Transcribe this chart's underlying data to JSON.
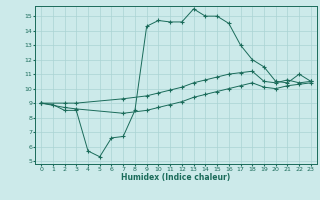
{
  "xlabel": "Humidex (Indice chaleur)",
  "bg_color": "#cceaea",
  "grid_color": "#aad4d4",
  "line_color": "#1a6b5a",
  "spine_color": "#1a6b5a",
  "xlim": [
    -0.5,
    23.5
  ],
  "ylim": [
    4.8,
    15.7
  ],
  "xticks": [
    0,
    1,
    2,
    3,
    4,
    5,
    6,
    7,
    8,
    9,
    10,
    11,
    12,
    13,
    14,
    15,
    16,
    17,
    18,
    19,
    20,
    21,
    22,
    23
  ],
  "yticks": [
    5,
    6,
    7,
    8,
    9,
    10,
    11,
    12,
    13,
    14,
    15
  ],
  "curve1_x": [
    0,
    1,
    2,
    3,
    4,
    5,
    6,
    7,
    8,
    9,
    10,
    11,
    12,
    13,
    14,
    15,
    16,
    17,
    18,
    19,
    20,
    21,
    22,
    23
  ],
  "curve1_y": [
    9.0,
    8.9,
    8.5,
    8.5,
    5.7,
    5.3,
    6.6,
    6.7,
    8.5,
    14.3,
    14.7,
    14.6,
    14.6,
    15.5,
    15.0,
    15.0,
    14.5,
    13.0,
    12.0,
    11.5,
    10.5,
    10.4,
    11.0,
    10.5
  ],
  "curve2_x": [
    0,
    2,
    3,
    7,
    9,
    10,
    11,
    12,
    13,
    14,
    15,
    16,
    17,
    18,
    19,
    20,
    21,
    22,
    23
  ],
  "curve2_y": [
    9.0,
    9.0,
    9.0,
    9.3,
    9.5,
    9.7,
    9.9,
    10.1,
    10.4,
    10.6,
    10.8,
    11.0,
    11.1,
    11.2,
    10.5,
    10.4,
    10.6,
    10.4,
    10.5
  ],
  "curve3_x": [
    0,
    2,
    3,
    7,
    9,
    10,
    11,
    12,
    13,
    14,
    15,
    16,
    17,
    18,
    19,
    20,
    21,
    22,
    23
  ],
  "curve3_y": [
    9.0,
    8.7,
    8.6,
    8.3,
    8.5,
    8.7,
    8.9,
    9.1,
    9.4,
    9.6,
    9.8,
    10.0,
    10.2,
    10.4,
    10.1,
    10.0,
    10.2,
    10.3,
    10.4
  ]
}
